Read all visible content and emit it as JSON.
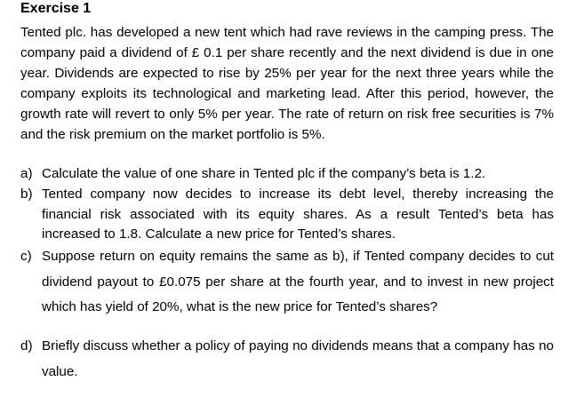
{
  "exercise": {
    "title": "Exercise 1",
    "intro": "Tented plc. has developed a new tent which had rave reviews in the camping press. The company paid a dividend of £ 0.1 per share recently and the next dividend is due in one year. Dividends are expected to rise by 25% per year for the next three years while the company exploits its technological and marketing lead. After this period, however, the growth rate will revert to only 5% per year. The rate of return on risk free securities is 7% and the risk premium on the market portfolio is 5%.",
    "questions": [
      {
        "marker": "a)",
        "text": "Calculate the value of one share in Tented plc if the company’s beta is 1.2."
      },
      {
        "marker": "b)",
        "text": "Tented company now decides to increase its debt level, thereby increasing the financial risk associated with its equity shares. As a result Tented’s beta has increased to 1.8. Calculate a new price for Tented’s shares."
      },
      {
        "marker": "c)",
        "text": "Suppose return on equity remains the same as b), if Tented company decides to cut dividend payout to £0.075 per share at the fourth year, and to invest in new project which has yield of 20%, what is the new price for Tented’s shares?"
      },
      {
        "marker": "d)",
        "text": "Briefly discuss whether a policy of paying no dividends means that a company has no value."
      }
    ]
  }
}
